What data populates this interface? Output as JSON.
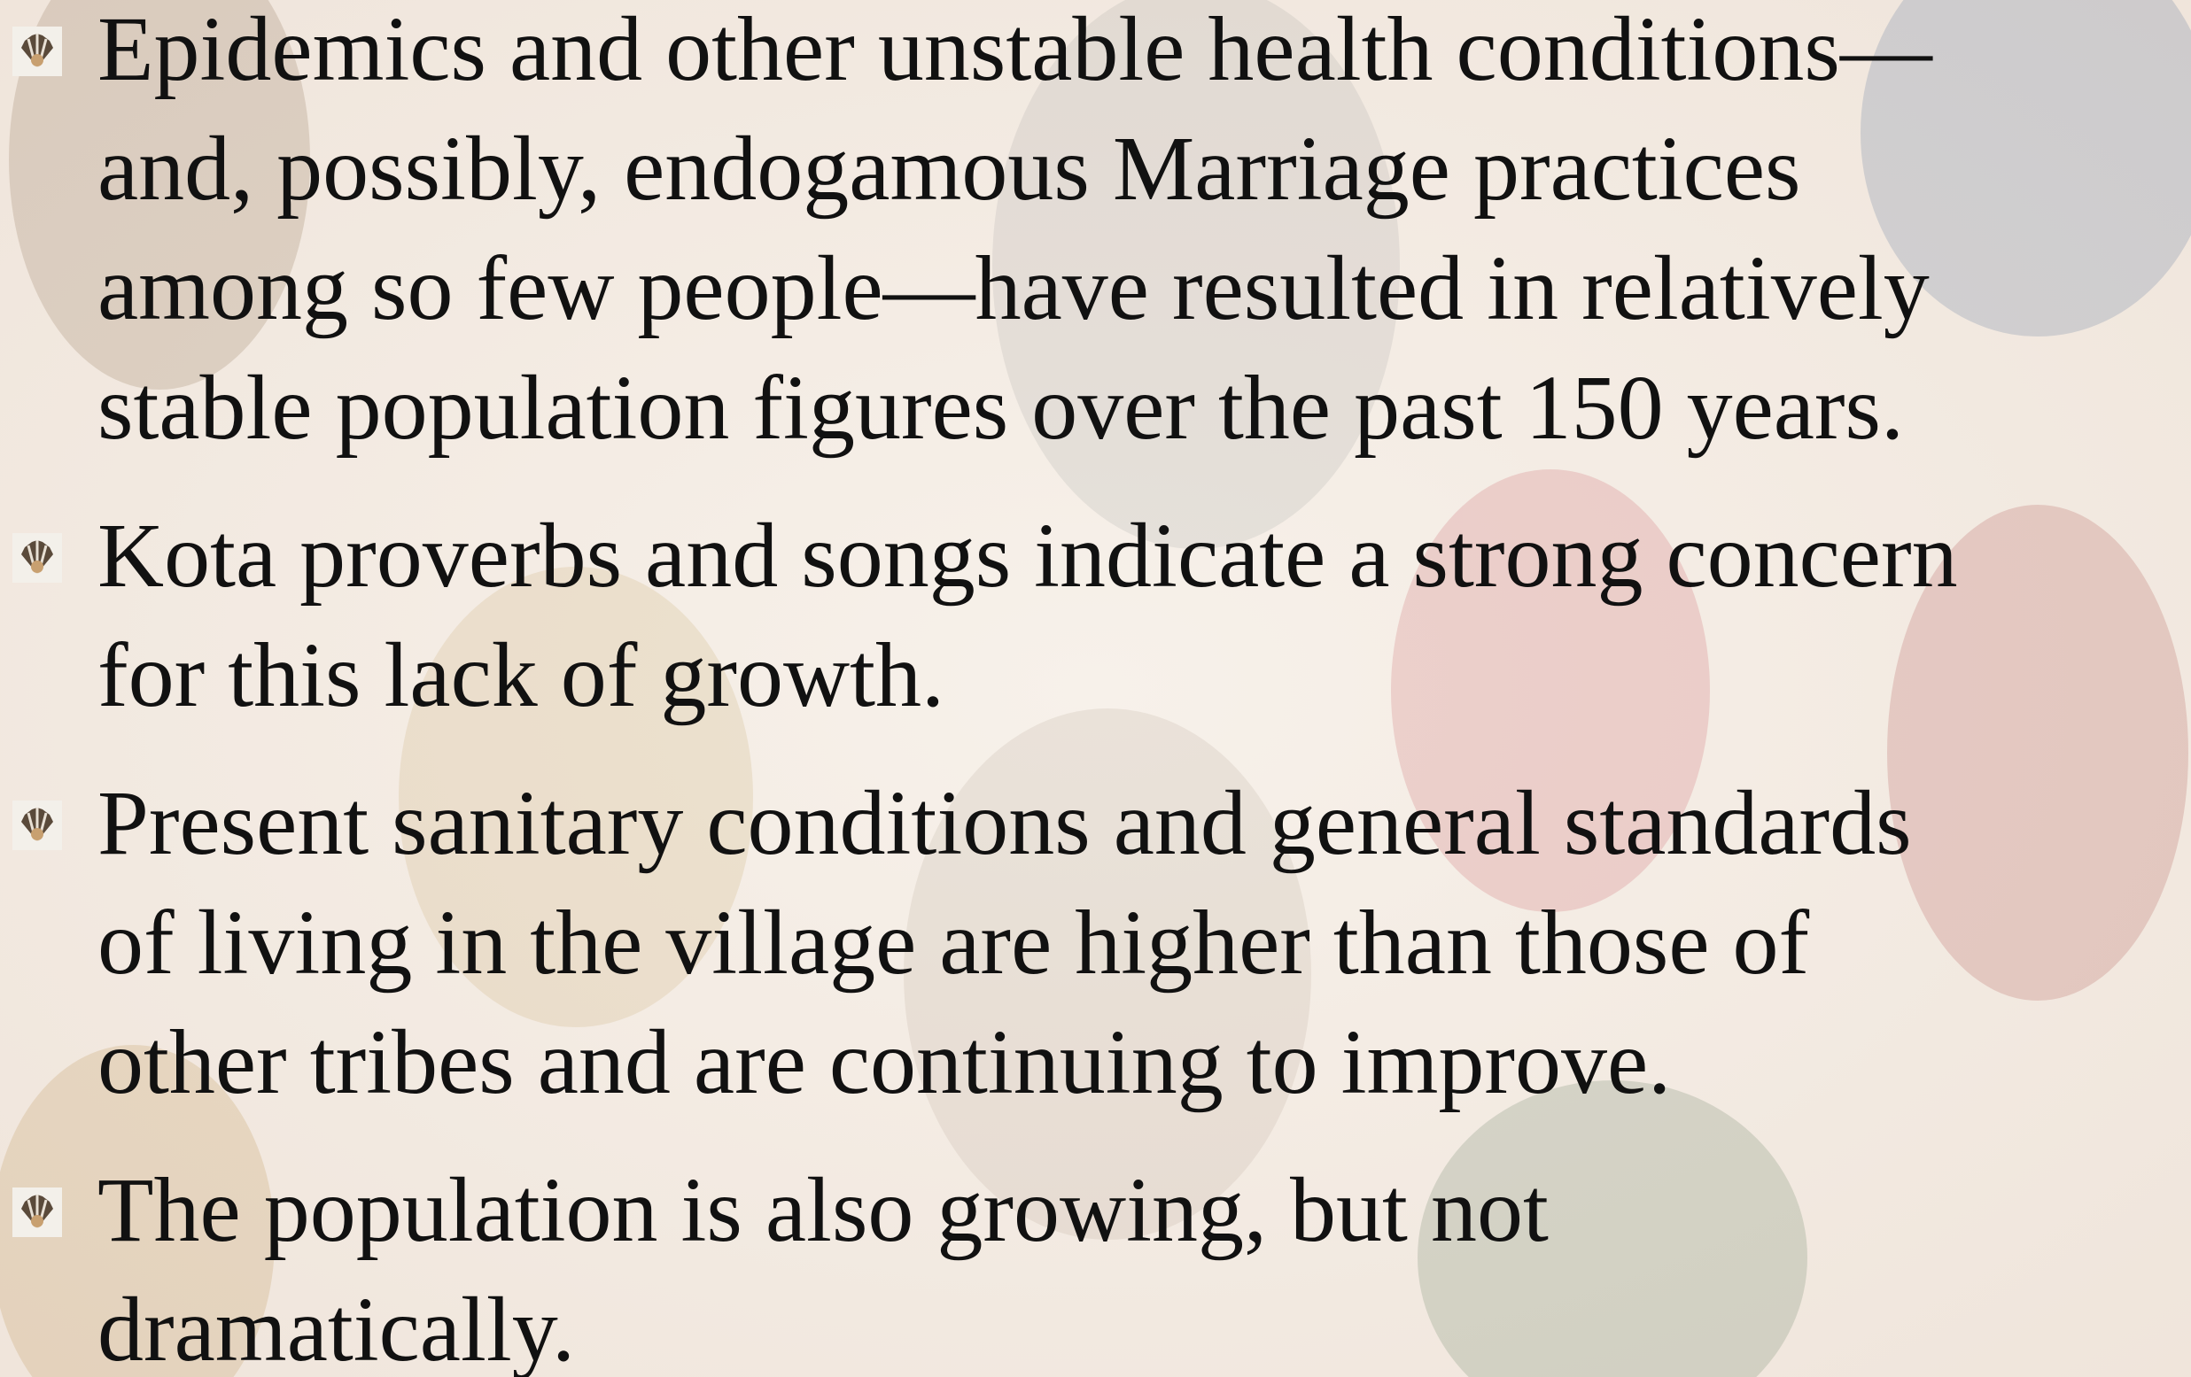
{
  "bullets": [
    {
      "lines": [
        "Epidemics and other unstable health conditions—",
        "and, possibly, endogamous Marriage practices",
        "among so few people—have resulted in relatively",
        "stable population figures over the past 150 years."
      ]
    },
    {
      "lines": [
        "Kota proverbs and songs indicate a strong concern",
        "for this lack of growth."
      ]
    },
    {
      "lines": [
        "Present sanitary conditions and general standards",
        "of living in the village are higher than those of",
        "other tribes and are continuing to improve."
      ]
    },
    {
      "lines": [
        "The population is also growing, but not",
        "dramatically."
      ]
    }
  ]
}
